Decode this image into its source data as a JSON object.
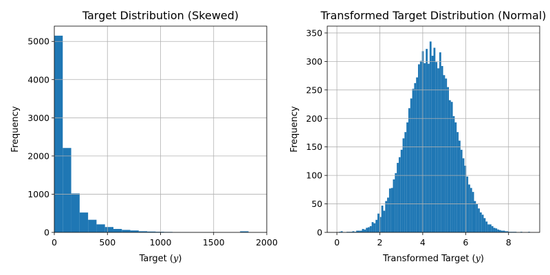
{
  "chart_data": [
    {
      "type": "bar",
      "title": "Target Distribution (Skewed)",
      "xlabel": "Target (y)",
      "xlabel_prefix": "Target (",
      "xlabel_var": "y",
      "xlabel_suffix": ")",
      "ylabel": "Frequency",
      "xlim": [
        0,
        2000
      ],
      "ylim": [
        0,
        5400
      ],
      "xticks": [
        0,
        500,
        1000,
        1500,
        2000
      ],
      "yticks": [
        0,
        1000,
        2000,
        3000,
        4000,
        5000
      ],
      "grid": true,
      "color": "#1f77b4",
      "bin_width": 79.5,
      "bins_start": 0,
      "counts": [
        5150,
        2210,
        1020,
        520,
        330,
        210,
        140,
        90,
        65,
        50,
        30,
        22,
        16,
        12,
        9,
        7,
        6,
        5,
        4,
        3,
        2,
        2,
        28,
        3,
        1
      ]
    },
    {
      "type": "bar",
      "title": "Transformed Target Distribution (Normal)",
      "xlabel": "Transformed Target (y)",
      "xlabel_prefix": "Transformed Target (",
      "xlabel_var": "y",
      "xlabel_suffix": ")",
      "ylabel": "Frequency",
      "xlim": [
        -0.45,
        9.45
      ],
      "ylim": [
        0,
        362
      ],
      "xticks": [
        0,
        2,
        4,
        6,
        8
      ],
      "yticks": [
        0,
        50,
        100,
        150,
        200,
        250,
        300,
        350
      ],
      "grid": true,
      "color": "#1f77b4",
      "bin_width": 0.09,
      "bins_start": 0,
      "counts": [
        0,
        1,
        2,
        0,
        0,
        1,
        1,
        1,
        2,
        1,
        3,
        3,
        3,
        6,
        5,
        8,
        9,
        11,
        18,
        16,
        22,
        33,
        27,
        47,
        38,
        55,
        61,
        77,
        78,
        93,
        104,
        122,
        132,
        145,
        165,
        176,
        193,
        218,
        235,
        252,
        262,
        272,
        295,
        301,
        318,
        297,
        322,
        296,
        335,
        310,
        324,
        299,
        288,
        316,
        292,
        276,
        270,
        255,
        232,
        229,
        204,
        193,
        176,
        161,
        145,
        130,
        117,
        98,
        84,
        78,
        71,
        55,
        50,
        42,
        35,
        31,
        25,
        19,
        14,
        14,
        11,
        8,
        7,
        5,
        4,
        3,
        3,
        2,
        2,
        1,
        1,
        1,
        1,
        0,
        0,
        1,
        0,
        0,
        0,
        1
      ]
    }
  ]
}
